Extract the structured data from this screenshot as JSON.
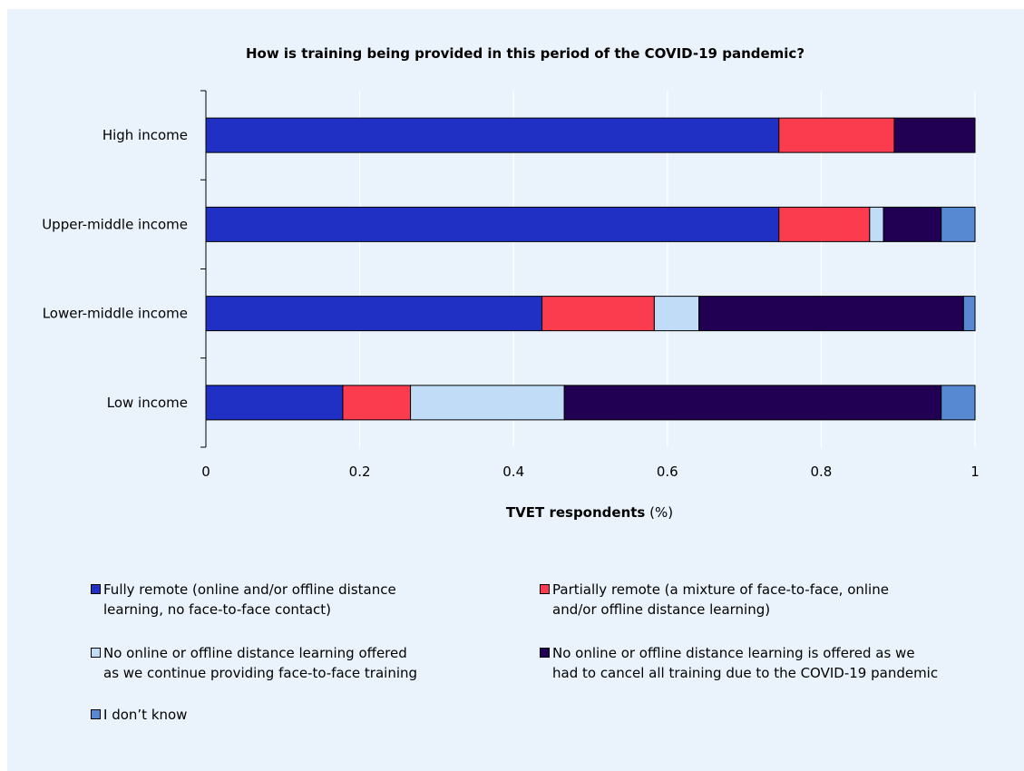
{
  "chart_data": {
    "type": "bar",
    "orientation": "horizontal",
    "stacked": true,
    "title": "How is training being provided in this period of the COVID-19 pandemic?",
    "xlabel_bold": "TVET respondents",
    "xlabel_rest": " (%)",
    "xlim": [
      0,
      1
    ],
    "xticks": [
      "0",
      "0.2",
      "0.4",
      "0.6",
      "0.8",
      "1"
    ],
    "xtick_values": [
      0,
      0.2,
      0.4,
      0.6,
      0.8,
      1
    ],
    "grid": "vertical",
    "legend_position": "bottom",
    "categories": [
      "High income",
      "Upper-middle income",
      "Lower-middle income",
      "Low income"
    ],
    "series": [
      {
        "name": "Fully remote (online and/or offline distance learning, no face-to-face contact)",
        "color": "#2130c4",
        "values": [
          0.745,
          0.745,
          0.437,
          0.178
        ]
      },
      {
        "name": "Partially remote (a mixture of face-to-face, online and/or offline distance learning)",
        "color": "#fb3b4e",
        "values": [
          0.15,
          0.118,
          0.146,
          0.088
        ]
      },
      {
        "name": "No online or offline distance learning offered as we continue providing face-to-face training",
        "color": "#c0dcf7",
        "values": [
          0,
          0.018,
          0.058,
          0.2
        ]
      },
      {
        "name": "No online or offline distance learning is offered as we had to cancel all training due to the COVID-19 pandemic",
        "color": "#210053",
        "values": [
          0.105,
          0.075,
          0.344,
          0.49
        ]
      },
      {
        "name": "I don’t know",
        "color": "#5788d2",
        "values": [
          0,
          0.044,
          0.015,
          0.044
        ]
      }
    ]
  },
  "legend": {
    "items": [
      {
        "line1": "Fully remote (online and/or offline distance",
        "line2": "learning, no face-to-face contact)",
        "color": "#2130c4"
      },
      {
        "line1": "Partially remote (a mixture of face-to-face, online",
        "line2": "and/or offline distance learning)",
        "color": "#fb3b4e"
      },
      {
        "line1": "No online or offline distance learning offered",
        "line2": "as we continue providing face-to-face training",
        "color": "#c0dcf7"
      },
      {
        "line1": "No online or offline distance learning is offered as we",
        "line2": "had to cancel all training due to the COVID-19 pandemic",
        "color": "#210053"
      },
      {
        "line1": "I don’t know",
        "line2": "",
        "color": "#5788d2"
      }
    ]
  }
}
